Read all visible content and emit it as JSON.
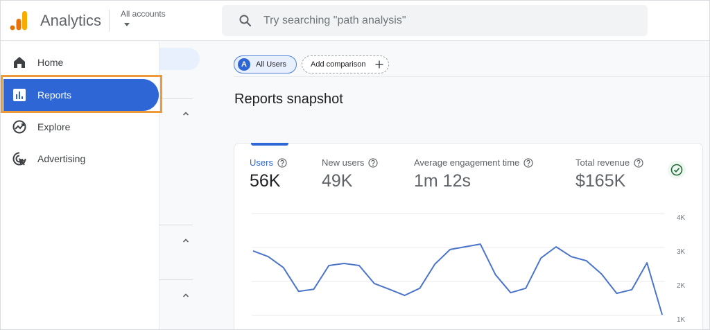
{
  "header": {
    "app_title": "Analytics",
    "account_selector": "All accounts",
    "search_placeholder": "Try searching \"path analysis\"",
    "logo_colors": [
      "#e37400",
      "#e8710a",
      "#f9ab00"
    ]
  },
  "nav": {
    "items": [
      {
        "label": "Home",
        "icon": "home-icon"
      },
      {
        "label": "Reports",
        "icon": "reports-icon",
        "active": true
      },
      {
        "label": "Explore",
        "icon": "explore-icon"
      },
      {
        "label": "Advertising",
        "icon": "advertising-icon"
      }
    ],
    "highlight_color": "#ed9a3a",
    "active_color": "#2e66d5"
  },
  "comparison": {
    "segment_avatar": "A",
    "segment_label": "All Users",
    "add_label": "Add comparison"
  },
  "main": {
    "title": "Reports snapshot"
  },
  "metrics": [
    {
      "label": "Users",
      "value": "56K",
      "active": true
    },
    {
      "label": "New users",
      "value": "49K"
    },
    {
      "label": "Average engagement time",
      "value": "1m 12s"
    },
    {
      "label": "Total revenue",
      "value": "$165K"
    }
  ],
  "chart_data": {
    "type": "line",
    "title": "",
    "xlabel": "",
    "ylabel": "",
    "y_ticks": [
      "4K",
      "3K",
      "2K",
      "1K"
    ],
    "ylim": [
      1000,
      4000
    ],
    "grid": true,
    "axis_side": "right",
    "series": [
      {
        "name": "Users",
        "color": "#4a74c9",
        "values": [
          2900,
          2730,
          2410,
          1710,
          1770,
          2470,
          2530,
          2470,
          1940,
          1770,
          1590,
          1800,
          2510,
          2940,
          3020,
          3100,
          2200,
          1670,
          1800,
          2690,
          3020,
          2730,
          2610,
          2220,
          1650,
          1760,
          2550,
          1020
        ]
      }
    ]
  }
}
